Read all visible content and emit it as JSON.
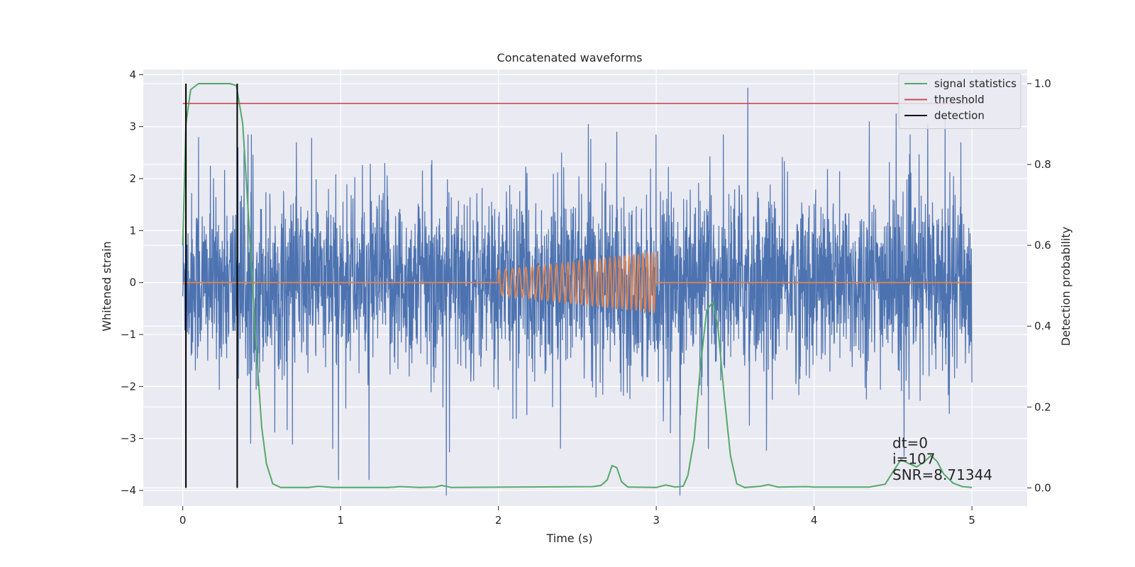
{
  "chart_data": {
    "type": "line",
    "title": "Concatenated waveforms",
    "xlabel": "Time (s)",
    "ylabel": "Whitened strain",
    "y2label": "Detection probability",
    "xlim": [
      -0.25,
      5.35
    ],
    "ylim": [
      -4.3,
      4.1
    ],
    "y2lim": [
      -0.045,
      1.035
    ],
    "xticks": [
      0,
      1,
      2,
      3,
      4,
      5
    ],
    "yticks": [
      -4,
      -3,
      -2,
      -1,
      0,
      1,
      2,
      3,
      4
    ],
    "y2ticks": [
      0.0,
      0.2,
      0.4,
      0.6,
      0.8,
      1.0
    ],
    "grid": true,
    "legend_position": "top-right",
    "background_color": "#eaeaf2",
    "annotations": [
      "dt=0",
      "i=107",
      "SNR=8.71344"
    ],
    "series": [
      {
        "name": "",
        "axis": "left",
        "color": "#4c72b0",
        "kind": "noise",
        "x_range": [
          0,
          5
        ],
        "amplitude_range": [
          -4.1,
          3.75
        ],
        "peaks": [
          {
            "x": 0.02,
            "y": 2.45
          },
          {
            "x": 0.1,
            "y": 2.8
          },
          {
            "x": 0.35,
            "y": 2.6
          },
          {
            "x": 0.43,
            "y": -3.1
          },
          {
            "x": 0.72,
            "y": 2.7
          },
          {
            "x": 0.95,
            "y": -3.2
          },
          {
            "x": 1.18,
            "y": -3.8
          },
          {
            "x": 1.28,
            "y": 2.3
          },
          {
            "x": 1.67,
            "y": -4.1
          },
          {
            "x": 2.4,
            "y": 2.5
          },
          {
            "x": 2.57,
            "y": 3.05
          },
          {
            "x": 2.75,
            "y": 2.9
          },
          {
            "x": 3.15,
            "y": -4.1
          },
          {
            "x": 3.33,
            "y": -3.2
          },
          {
            "x": 3.58,
            "y": 3.75
          },
          {
            "x": 4.35,
            "y": 3.1
          },
          {
            "x": 4.52,
            "y": 3.25
          },
          {
            "x": 4.57,
            "y": -3.35
          },
          {
            "x": 4.72,
            "y": 3.05
          },
          {
            "x": 4.83,
            "y": 3.2
          },
          {
            "x": 4.93,
            "y": 2.7
          }
        ]
      },
      {
        "name": "",
        "axis": "left",
        "color": "#dd8452",
        "kind": "chirp",
        "x_range": [
          0,
          5
        ],
        "chirp_x_range": [
          2.0,
          3.0
        ],
        "chirp_start_amplitude": 0.24,
        "chirp_end_amplitude": 0.58,
        "chirp_cycles": 29
      },
      {
        "name": "signal statistics",
        "axis": "right",
        "color": "#55a868",
        "points": [
          [
            0.0,
            0.6
          ],
          [
            0.02,
            0.9
          ],
          [
            0.05,
            0.985
          ],
          [
            0.1,
            1.0
          ],
          [
            0.2,
            1.0
          ],
          [
            0.3,
            1.0
          ],
          [
            0.34,
            0.995
          ],
          [
            0.38,
            0.9
          ],
          [
            0.42,
            0.65
          ],
          [
            0.46,
            0.38
          ],
          [
            0.5,
            0.15
          ],
          [
            0.53,
            0.06
          ],
          [
            0.57,
            0.01
          ],
          [
            0.62,
            0.001
          ],
          [
            0.8,
            0.001
          ],
          [
            0.86,
            0.004
          ],
          [
            0.95,
            0.001
          ],
          [
            1.3,
            0.001
          ],
          [
            1.38,
            0.003
          ],
          [
            1.5,
            0.001
          ],
          [
            1.6,
            0.002
          ],
          [
            1.64,
            0.006
          ],
          [
            1.7,
            0.001
          ],
          [
            2.6,
            0.003
          ],
          [
            2.65,
            0.006
          ],
          [
            2.69,
            0.02
          ],
          [
            2.72,
            0.055
          ],
          [
            2.75,
            0.05
          ],
          [
            2.78,
            0.015
          ],
          [
            2.82,
            0.002
          ],
          [
            3.0,
            0.001
          ],
          [
            3.06,
            0.007
          ],
          [
            3.12,
            0.002
          ],
          [
            3.17,
            0.004
          ],
          [
            3.2,
            0.03
          ],
          [
            3.24,
            0.12
          ],
          [
            3.28,
            0.3
          ],
          [
            3.32,
            0.44
          ],
          [
            3.36,
            0.46
          ],
          [
            3.39,
            0.4
          ],
          [
            3.43,
            0.23
          ],
          [
            3.47,
            0.08
          ],
          [
            3.51,
            0.01
          ],
          [
            3.56,
            0.001
          ],
          [
            3.66,
            0.004
          ],
          [
            3.71,
            0.008
          ],
          [
            3.77,
            0.002
          ],
          [
            3.95,
            0.003
          ],
          [
            4.0,
            0.002
          ],
          [
            4.35,
            0.002
          ],
          [
            4.45,
            0.009
          ],
          [
            4.5,
            0.04
          ],
          [
            4.55,
            0.07
          ],
          [
            4.6,
            0.06
          ],
          [
            4.65,
            0.052
          ],
          [
            4.7,
            0.065
          ],
          [
            4.74,
            0.08
          ],
          [
            4.78,
            0.065
          ],
          [
            4.82,
            0.035
          ],
          [
            4.88,
            0.012
          ],
          [
            4.94,
            0.003
          ],
          [
            5.0,
            0.001
          ]
        ]
      },
      {
        "name": "threshold",
        "axis": "right",
        "color": "#c44e52",
        "x": [
          0,
          5
        ],
        "y": [
          0.951,
          0.951
        ]
      },
      {
        "name": "detection",
        "axis": "right",
        "color": "#000000",
        "vlines": [
          0.02,
          0.345
        ],
        "y_range": [
          0.0,
          1.0
        ]
      }
    ]
  }
}
